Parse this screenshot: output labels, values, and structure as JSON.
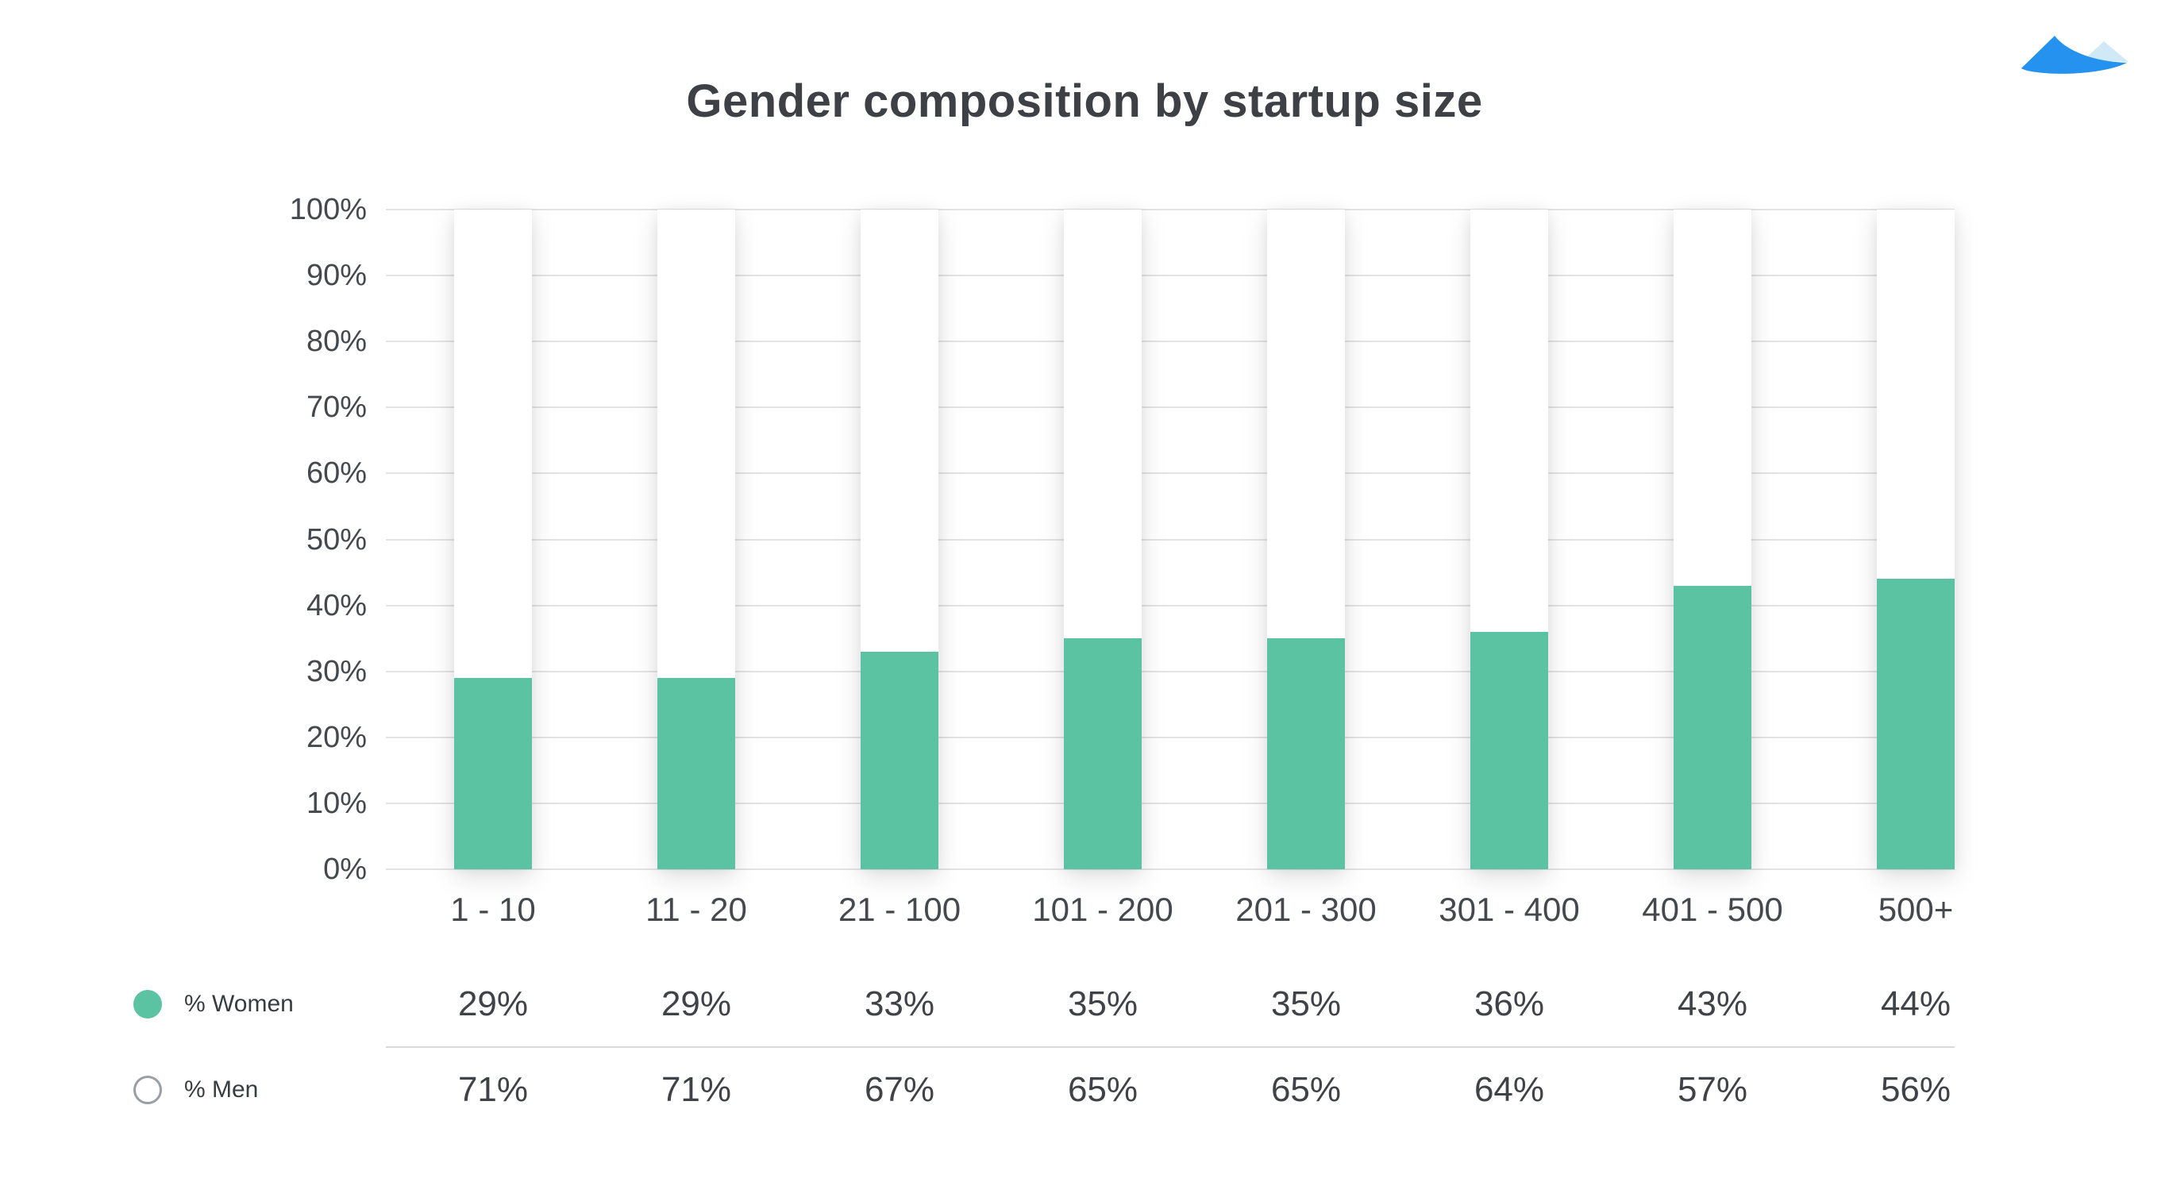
{
  "logo": {
    "name": "blue-mountain-logo",
    "primary_color": "#2492ee",
    "secondary_color": "#cfe9f6"
  },
  "chart_data": {
    "type": "bar",
    "variant": "stacked-percent-column",
    "title": "Gender composition by startup size",
    "categories": [
      "1 - 10",
      "11 - 20",
      "21 - 100",
      "101 - 200",
      "201 - 300",
      "301 - 400",
      "401 - 500",
      "500+"
    ],
    "series": [
      {
        "name": "% Women",
        "swatch": "filled",
        "color": "#5bc2a2",
        "values": [
          29,
          29,
          33,
          35,
          35,
          36,
          43,
          44
        ]
      },
      {
        "name": "% Men",
        "swatch": "outline",
        "color": "#ffffff",
        "values": [
          71,
          71,
          67,
          65,
          65,
          64,
          57,
          56
        ]
      }
    ],
    "y_axis": {
      "min": 0,
      "max": 100,
      "step": 10,
      "tick_suffix": "%",
      "tick_labels": [
        "100%",
        "90%",
        "80%",
        "70%",
        "60%",
        "50%",
        "40%",
        "30%",
        "20%",
        "10%",
        "0%"
      ]
    },
    "grid": true,
    "legend_position": "bottom-left",
    "colors": {
      "women_bar": "#5bc2a2",
      "men_bar": "#ffffff",
      "grid_line": "#e3e3e3",
      "divider_line": "#d9d9d9",
      "title_text": "#3d4145",
      "axis_text": "#45494d"
    }
  }
}
